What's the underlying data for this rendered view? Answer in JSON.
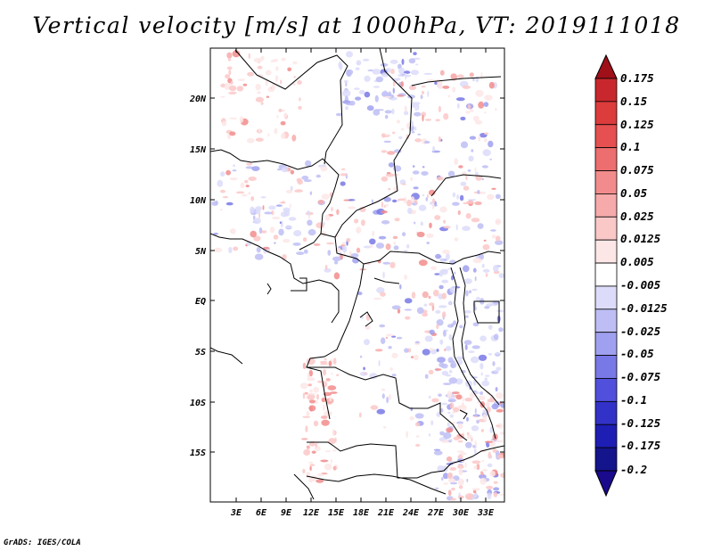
{
  "title": "Vertical velocity [m/s] at 1000hPa, VT: 2019111018",
  "credit": "GrADS: IGES/COLA",
  "map": {
    "lat_labels": [
      "20N",
      "15N",
      "10N",
      "5N",
      "EQ",
      "5S",
      "10S",
      "15S"
    ],
    "lon_labels": [
      "3E",
      "6E",
      "9E",
      "12E",
      "15E",
      "18E",
      "21E",
      "24E",
      "27E",
      "30E",
      "33E"
    ]
  },
  "colorbar": {
    "labels": [
      "0.175",
      "0.15",
      "0.125",
      "0.1",
      "0.075",
      "0.05",
      "0.025",
      "0.0125",
      "0.005",
      "-0.005",
      "-0.0125",
      "-0.025",
      "-0.05",
      "-0.075",
      "-0.1",
      "-0.125",
      "-0.175",
      "-0.2"
    ],
    "colors": [
      "#b4141e",
      "#c8282d",
      "#dc3c3c",
      "#e65050",
      "#ec6e6e",
      "#f28c8c",
      "#f7aaaa",
      "#fbc8c8",
      "#fde6e6",
      "#ffffff",
      "#dcdcfa",
      "#bebef5",
      "#a0a0f0",
      "#7878e6",
      "#5050dc",
      "#3232c8",
      "#1e1eb4",
      "#14148c"
    ]
  }
}
